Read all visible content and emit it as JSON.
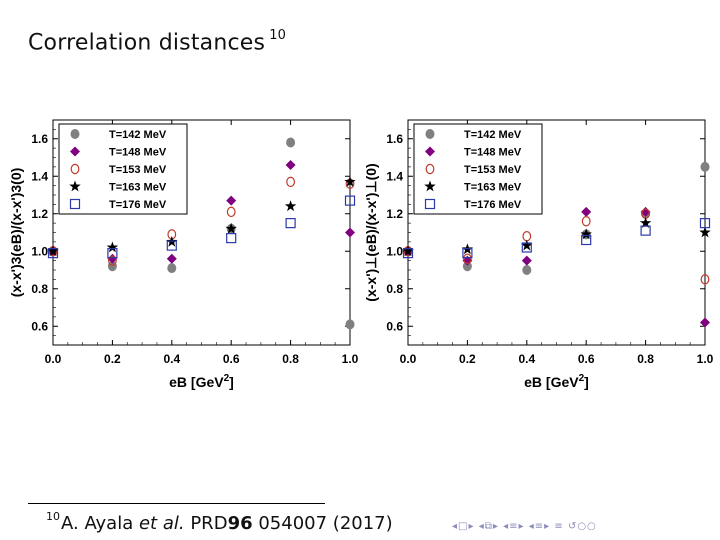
{
  "slide": {
    "title": "Correlation distances",
    "title_ref": "10"
  },
  "legend_entries": [
    "T=142 MeV",
    "T=148 MeV",
    "T=153 MeV",
    "T=163 MeV",
    "T=176 MeV"
  ],
  "colors": {
    "T142": "#808080",
    "T148": "#800080",
    "T153": "#c0392b",
    "T163": "#000000",
    "T176": "#2b3aa8"
  },
  "chart_data": [
    {
      "type": "scatter",
      "title": "",
      "xlabel": "eB [GeV2]",
      "ylabel": "(x-x')3(eB)/(x-x')3(0)",
      "xlim": [
        0.0,
        1.0
      ],
      "ylim": [
        0.5,
        1.7
      ],
      "xticks": [
        "0.0",
        "0.2",
        "0.4",
        "0.6",
        "0.8",
        "1.0"
      ],
      "yticks": [
        "0.6",
        "0.8",
        "1.0",
        "1.2",
        "1.4",
        "1.6"
      ],
      "legend_position": "top-left",
      "series": [
        {
          "name": "T=142 MeV",
          "marker": "circle-filled",
          "x": [
            0.0,
            0.2,
            0.4,
            0.6,
            0.8,
            1.0
          ],
          "values": [
            1.0,
            0.92,
            0.91,
            1.12,
            1.58,
            0.61
          ]
        },
        {
          "name": "T=148 MeV",
          "marker": "diamond-filled",
          "x": [
            0.0,
            0.2,
            0.4,
            0.6,
            0.8,
            1.0
          ],
          "values": [
            1.0,
            0.96,
            0.96,
            1.27,
            1.46,
            1.1
          ]
        },
        {
          "name": "T=153 MeV",
          "marker": "circle-open",
          "x": [
            0.0,
            0.2,
            0.4,
            0.6,
            0.8,
            1.0
          ],
          "values": [
            1.0,
            0.95,
            1.09,
            1.21,
            1.37,
            1.36
          ]
        },
        {
          "name": "T=163 MeV",
          "marker": "star",
          "x": [
            0.0,
            0.2,
            0.4,
            0.6,
            0.8,
            1.0
          ],
          "values": [
            1.0,
            1.02,
            1.05,
            1.12,
            1.24,
            1.37
          ]
        },
        {
          "name": "T=176 MeV",
          "marker": "square-open",
          "x": [
            0.0,
            0.2,
            0.4,
            0.6,
            0.8,
            1.0
          ],
          "values": [
            0.99,
            0.99,
            1.03,
            1.07,
            1.15,
            1.27
          ]
        }
      ]
    },
    {
      "type": "scatter",
      "title": "",
      "xlabel": "eB [GeV2]",
      "ylabel": "(x-x')⊥(eB)/(x-x')⊥(0)",
      "xlim": [
        0.0,
        1.0
      ],
      "ylim": [
        0.5,
        1.7
      ],
      "xticks": [
        "0.0",
        "0.2",
        "0.4",
        "0.6",
        "0.8",
        "1.0"
      ],
      "yticks": [
        "0.6",
        "0.8",
        "1.0",
        "1.2",
        "1.4",
        "1.6"
      ],
      "legend_position": "top-left",
      "series": [
        {
          "name": "T=142 MeV",
          "marker": "circle-filled",
          "x": [
            0.0,
            0.2,
            0.4,
            0.6,
            0.8,
            1.0
          ],
          "values": [
            1.0,
            0.92,
            0.9,
            1.09,
            1.2,
            1.45
          ]
        },
        {
          "name": "T=148 MeV",
          "marker": "diamond-filled",
          "x": [
            0.0,
            0.2,
            0.4,
            0.6,
            0.8,
            1.0
          ],
          "values": [
            1.0,
            0.95,
            0.95,
            1.21,
            1.21,
            0.62
          ]
        },
        {
          "name": "T=153 MeV",
          "marker": "circle-open",
          "x": [
            0.0,
            0.2,
            0.4,
            0.6,
            0.8,
            1.0
          ],
          "values": [
            1.0,
            0.96,
            1.08,
            1.16,
            1.2,
            0.85
          ]
        },
        {
          "name": "T=163 MeV",
          "marker": "star",
          "x": [
            0.0,
            0.2,
            0.4,
            0.6,
            0.8,
            1.0
          ],
          "values": [
            1.0,
            1.01,
            1.03,
            1.09,
            1.15,
            1.1
          ]
        },
        {
          "name": "T=176 MeV",
          "marker": "square-open",
          "x": [
            0.0,
            0.2,
            0.4,
            0.6,
            0.8,
            1.0
          ],
          "values": [
            0.99,
            0.99,
            1.02,
            1.06,
            1.11,
            1.15
          ]
        }
      ]
    }
  ],
  "footnote": {
    "mark": "10",
    "author": "A. Ayala",
    "etal": "et al.",
    "journal": "PRD",
    "volume": "96",
    "rest": "054007 (2017)"
  },
  "nav": {
    "icons": [
      "nav-left-arrow",
      "nav-right-arrow",
      "frame-back",
      "frame-forward",
      "section-back",
      "section-forward",
      "subsection-back",
      "subsection-forward",
      "align-icon",
      "search-icon"
    ]
  }
}
